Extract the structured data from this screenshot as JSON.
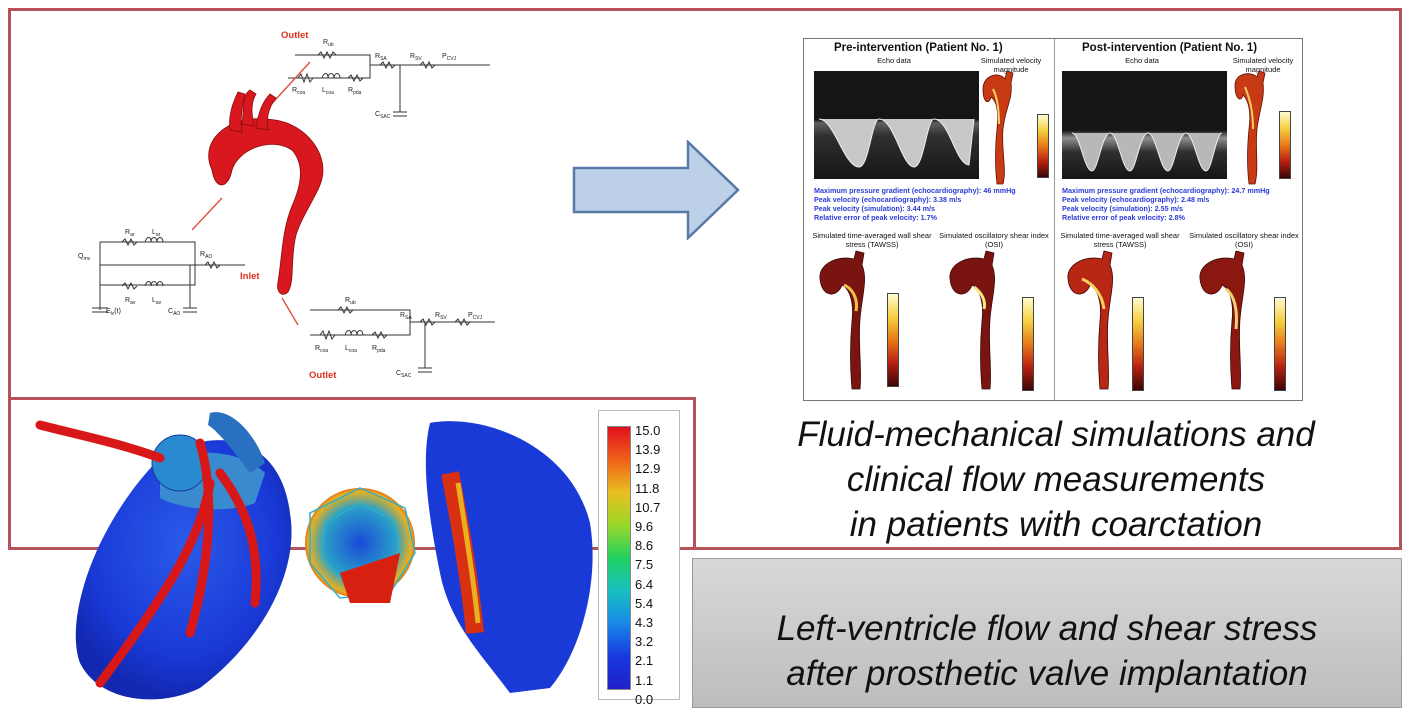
{
  "circuit": {
    "outlet_top": "Outlet",
    "outlet_bottom": "Outlet",
    "inlet": "Inlet",
    "labels_top": [
      "Rub",
      "RSA",
      "RSV",
      "PCVJ",
      "Rcoa",
      "Lcoa",
      "Rpda",
      "CSAC"
    ],
    "labels_left": [
      "Qmv",
      "Rar",
      "Lar",
      "RAO",
      "Rav",
      "Lav",
      "Elv(t)",
      "CAO"
    ],
    "labels_bottom": [
      "Rub",
      "RSA",
      "RSV",
      "PCVJ",
      "Rcoa",
      "Lcoa",
      "Rpda",
      "CSAC"
    ]
  },
  "colors": {
    "frame": "#b5525a",
    "aorta": "#d8181e",
    "arrow_fill": "#bcd0e8",
    "arrow_stroke": "#5878a8",
    "text_blue": "#2c3bd6"
  },
  "panel": {
    "pre": {
      "title": "Pre-intervention (Patient No. 1)",
      "echo": "Echo data",
      "sim": "Simulated velocity magnitude",
      "lines": [
        "Maximum pressure gradient (echocardiography): 46 mmHg",
        "Peak velocity (echocardiography): 3.38 m/s",
        "Peak velocity (simulation): 3.44 m/s",
        "Relative error of peak velocity: 1.7%"
      ],
      "tawss": "Simulated time-averaged wall shear stress (TAWSS)",
      "osi": "Simulated oscillatory shear index (OSI)"
    },
    "post": {
      "title": "Post-intervention (Patient No. 1)",
      "echo": "Echo data",
      "sim": "Simulated velocity magnitude",
      "lines": [
        "Maximum pressure gradient (echocardiography): 24.7 mmHg",
        "Peak velocity (echocardiography): 2.48 m/s",
        "Peak velocity (simulation): 2.55 m/s",
        "Relative error of peak velocity: 2.8%"
      ],
      "tawss": "Simulated time-averaged wall shear stress (TAWSS)",
      "osi": "Simulated oscillatory shear index (OSI)"
    }
  },
  "caption_top": [
    "Fluid-mechanical simulations and",
    "clinical flow measurements",
    "in patients with coarctation"
  ],
  "caption_bottom": [
    "Left-ventricle flow and shear stress",
    "after prosthetic valve implantation"
  ],
  "legend_ticks": [
    "15.0",
    "13.9",
    "12.9",
    "11.8",
    "10.7",
    "9.6",
    "8.6",
    "7.5",
    "6.4",
    "5.4",
    "4.3",
    "3.2",
    "2.1",
    "1.1",
    "0.0"
  ]
}
